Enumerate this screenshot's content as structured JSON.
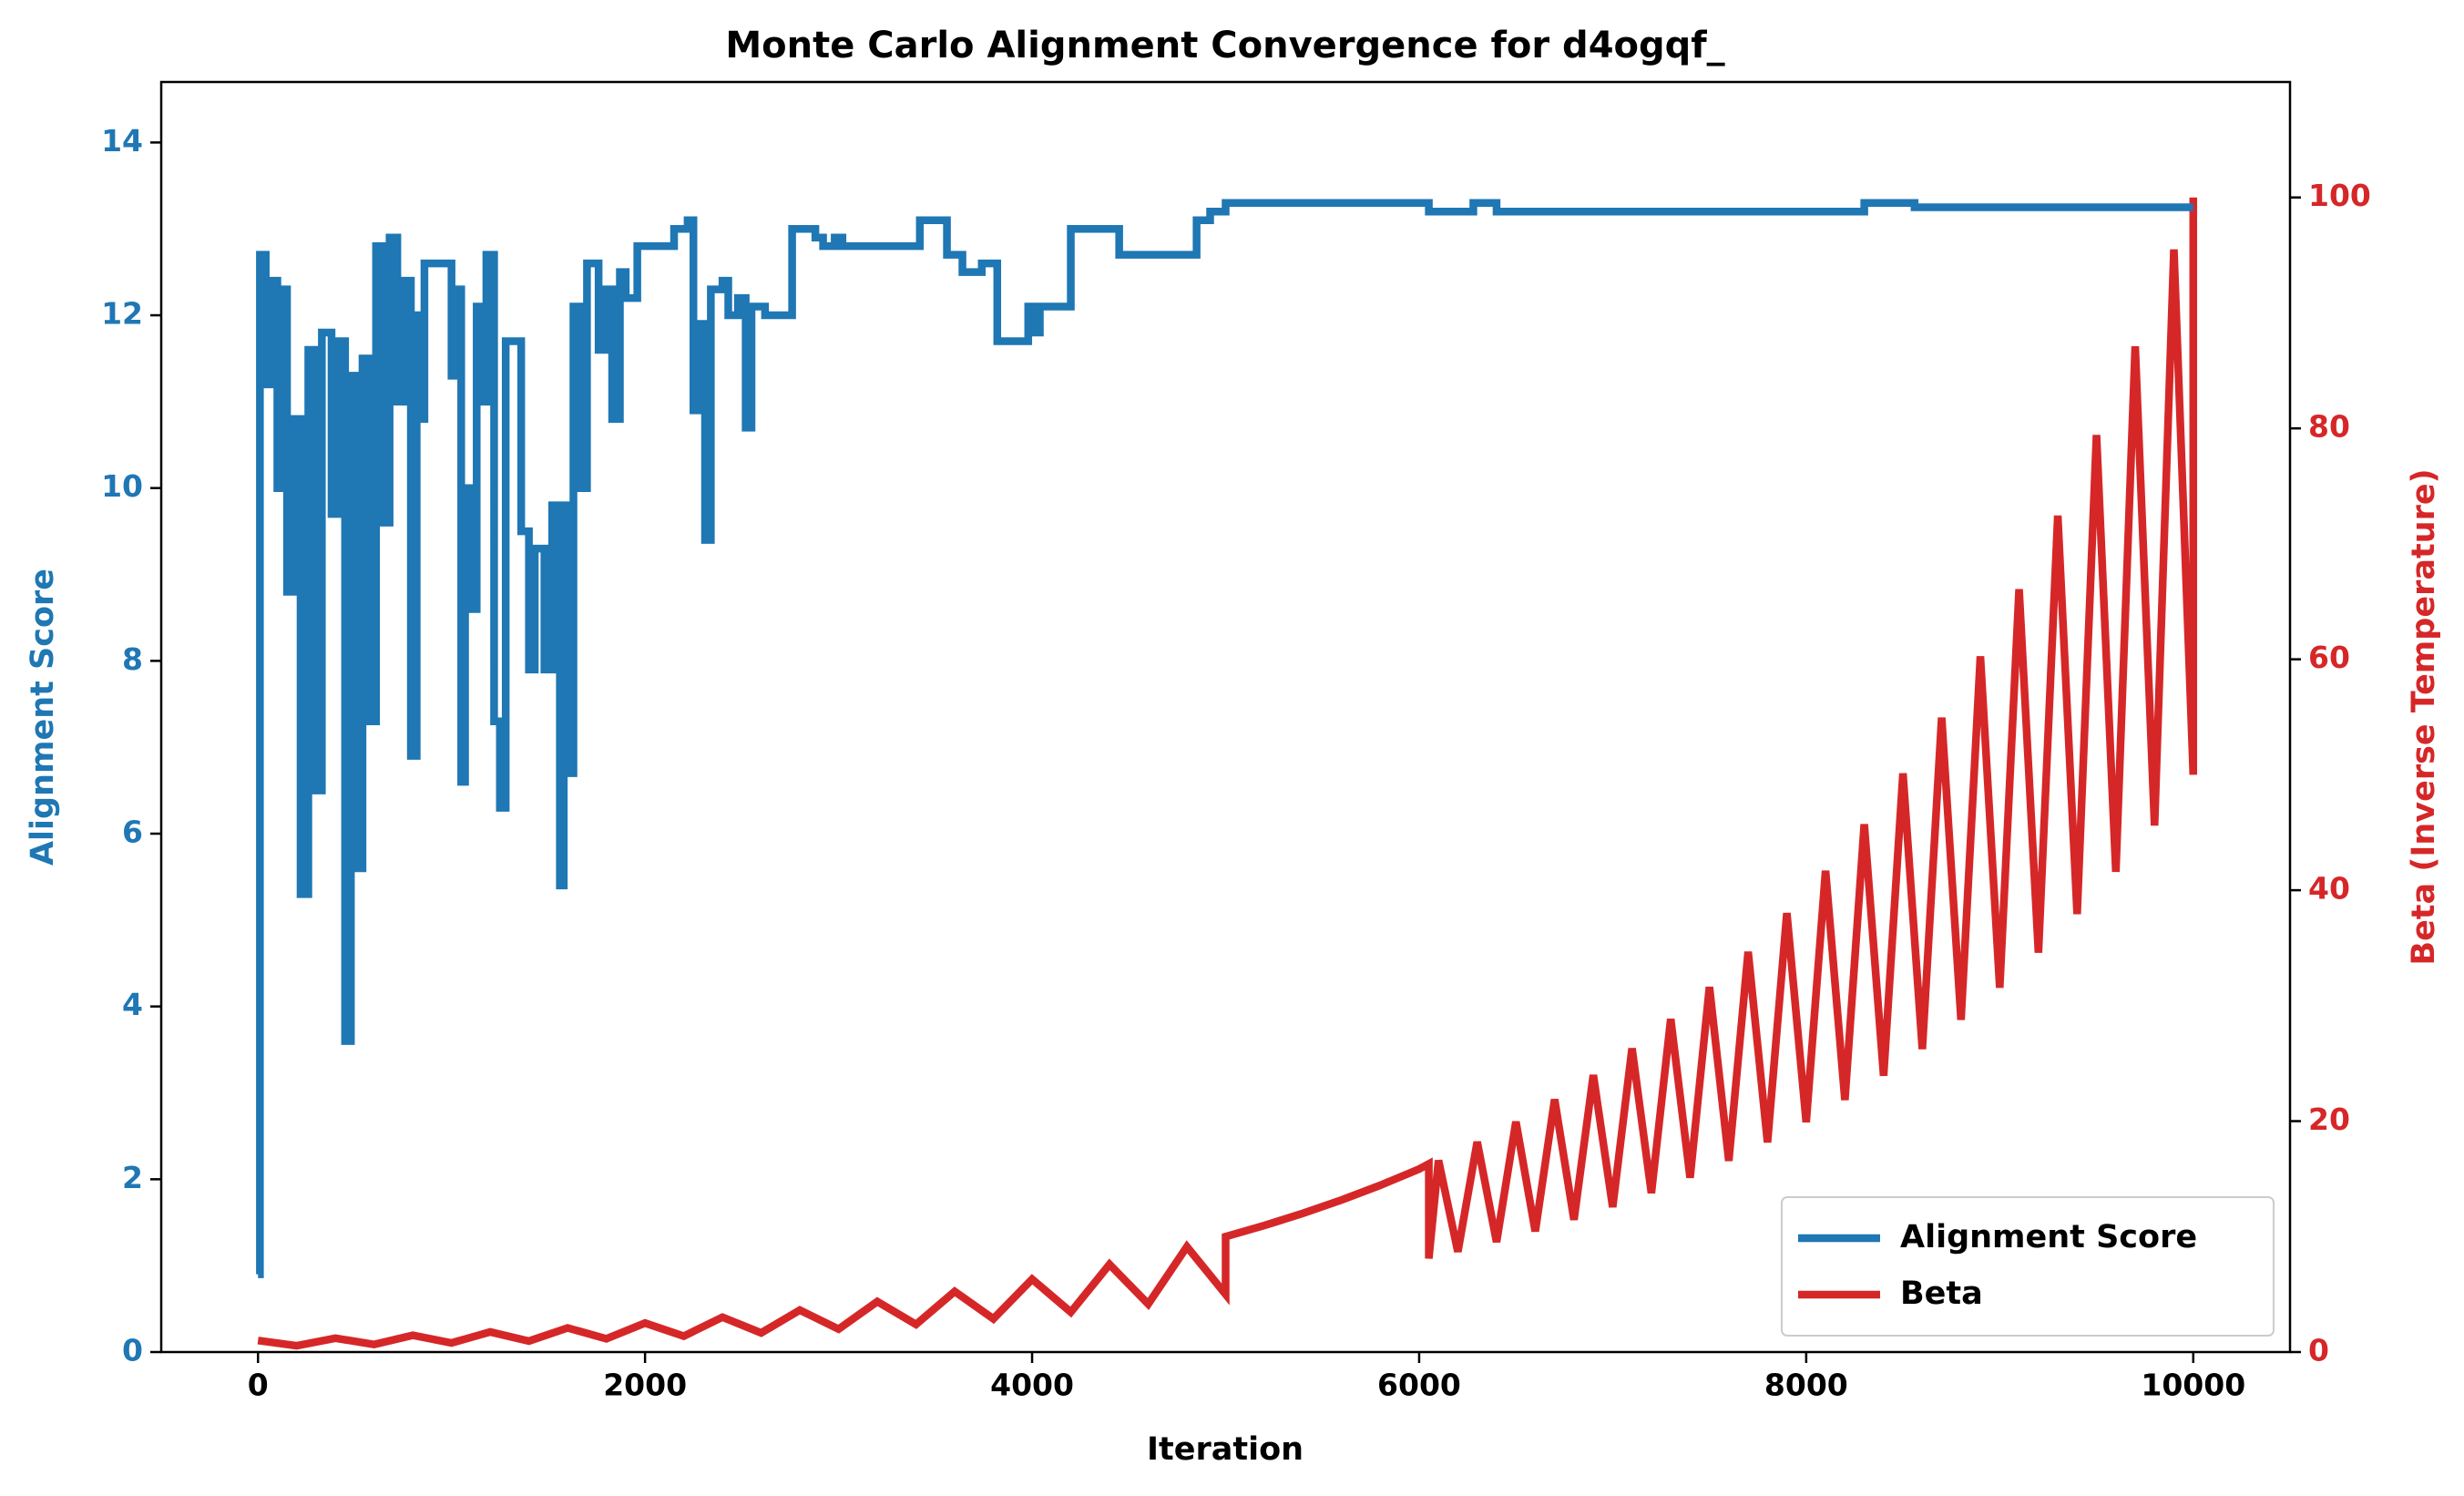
{
  "chart_data": {
    "type": "line",
    "title": "Monte Carlo Alignment Convergence for d4ogqf_",
    "x_label": "Iteration",
    "y_label": "Alignment Score",
    "y2_label": "Beta (Inverse Temperature)",
    "xlim": [
      -500,
      10500
    ],
    "xticks": [
      0,
      2000,
      4000,
      6000,
      8000,
      10000
    ],
    "ylim": [
      0,
      14.7
    ],
    "yticks": [
      0,
      2,
      4,
      6,
      8,
      10,
      12,
      14
    ],
    "y2lim": [
      0,
      110
    ],
    "y2ticks": [
      0,
      20,
      40,
      60,
      80,
      100
    ],
    "legend": "lower right",
    "series": [
      {
        "name": "Alignment Score",
        "color": "#1f77b4",
        "drawstyle": "steps-post",
        "x": [
          0,
          10,
          40,
          60,
          100,
          120,
          150,
          180,
          220,
          260,
          290,
          330,
          380,
          420,
          450,
          480,
          510,
          540,
          570,
          610,
          650,
          680,
          720,
          760,
          790,
          820,
          840,
          860,
          1000,
          1020,
          1050,
          1070,
          1100,
          1130,
          1170,
          1180,
          1220,
          1250,
          1280,
          1360,
          1400,
          1430,
          1480,
          1520,
          1560,
          1580,
          1610,
          1630,
          1660,
          1700,
          1760,
          1800,
          1830,
          1870,
          1900,
          1960,
          2150,
          2220,
          2250,
          2280,
          2310,
          2340,
          2400,
          2430,
          2480,
          2520,
          2550,
          2620,
          2720,
          2760,
          2880,
          2920,
          2980,
          3020,
          3100,
          3380,
          3420,
          3500,
          3560,
          3640,
          3740,
          3820,
          3980,
          4020,
          4040,
          4200,
          4450,
          4850,
          4920,
          5000,
          6050,
          6280,
          6400,
          7000,
          7900,
          8300,
          8560,
          10000
        ],
        "values": [
          0.9,
          12.7,
          11.2,
          12.4,
          10.0,
          12.3,
          8.8,
          10.8,
          5.3,
          11.6,
          6.5,
          11.8,
          9.7,
          11.7,
          3.6,
          11.3,
          5.6,
          11.5,
          7.3,
          12.8,
          9.6,
          12.9,
          11.0,
          12.4,
          6.9,
          12.0,
          10.8,
          12.6,
          11.3,
          12.3,
          6.6,
          10.0,
          8.6,
          12.1,
          11.0,
          12.7,
          7.3,
          6.3,
          11.7,
          9.5,
          7.9,
          9.3,
          7.9,
          9.8,
          5.4,
          9.8,
          6.7,
          12.1,
          10.0,
          12.6,
          11.6,
          12.3,
          10.8,
          12.5,
          12.2,
          12.8,
          13.0,
          13.1,
          10.9,
          11.9,
          9.4,
          12.3,
          12.4,
          12.0,
          12.2,
          10.7,
          12.1,
          12.0,
          12.0,
          13.0,
          12.9,
          12.8,
          12.9,
          12.8,
          12.8,
          12.8,
          13.1,
          13.1,
          12.7,
          12.5,
          12.6,
          11.7,
          12.1,
          11.8,
          12.1,
          13.0,
          12.7,
          13.1,
          13.2,
          13.3,
          13.2,
          13.3,
          13.2,
          13.2,
          13.2,
          13.3,
          13.25,
          13.25
        ]
      },
      {
        "name": "Beta",
        "color": "#d62728",
        "axis": "y2",
        "x": [
          0,
          200,
          400,
          600,
          800,
          1000,
          1200,
          1400,
          1600,
          1800,
          2000,
          2200,
          2400,
          2600,
          2800,
          3000,
          3200,
          3400,
          3600,
          3800,
          4000,
          4200,
          4400,
          4600,
          4800,
          5000,
          5000,
          5200,
          5400,
          5600,
          5800,
          6000,
          6050,
          6050,
          6100,
          6200,
          6300,
          6400,
          6500,
          6600,
          6700,
          6800,
          6900,
          7000,
          7100,
          7200,
          7300,
          7400,
          7500,
          7600,
          7700,
          7800,
          7900,
          8000,
          8100,
          8200,
          8300,
          8400,
          8500,
          8600,
          8700,
          8800,
          8900,
          9000,
          9100,
          9200,
          9300,
          9400,
          9500,
          9600,
          9700,
          9800,
          9900,
          10000,
          10000
        ],
        "values": [
          1,
          0.55,
          1.2,
          0.66,
          1.45,
          0.79,
          1.74,
          0.95,
          2.09,
          1.15,
          2.51,
          1.38,
          3.02,
          1.66,
          3.63,
          1.99,
          4.37,
          2.39,
          5.25,
          2.88,
          6.31,
          3.46,
          7.59,
          4.16,
          9.12,
          5.0,
          10,
          10.96,
          12.02,
          13.18,
          14.45,
          15.85,
          16.3,
          8.1,
          16.6,
          8.69,
          18.2,
          9.53,
          19.95,
          10.45,
          21.88,
          11.46,
          23.99,
          12.56,
          26.3,
          13.77,
          28.84,
          15.1,
          31.62,
          16.56,
          34.67,
          18.16,
          38.02,
          19.91,
          41.69,
          21.83,
          45.71,
          23.93,
          50.12,
          26.24,
          54.95,
          28.77,
          60.26,
          31.55,
          66.07,
          34.59,
          72.44,
          37.93,
          79.43,
          41.59,
          87.1,
          45.6,
          95.5,
          50,
          100
        ]
      }
    ]
  }
}
